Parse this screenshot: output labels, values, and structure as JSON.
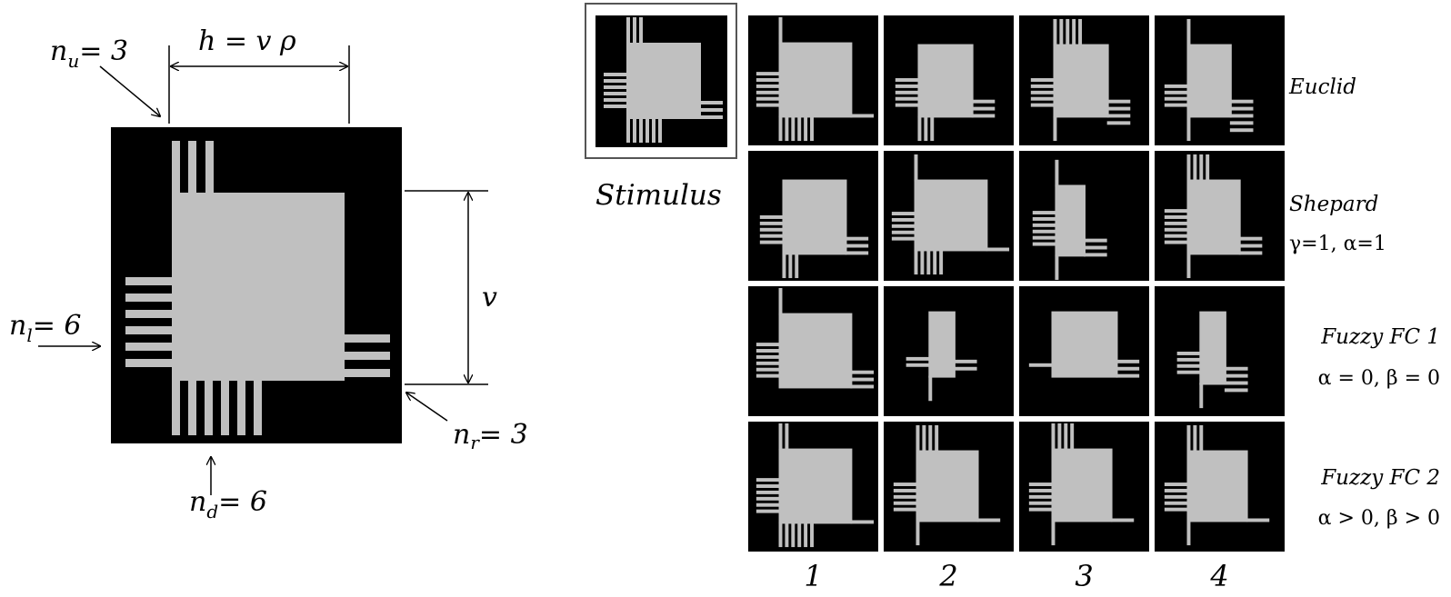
{
  "diagram": {
    "labels": {
      "nu": "n",
      "nu_sub": "u",
      "nu_val": "= 3",
      "h": "h = v ρ",
      "nl": "n",
      "nl_sub": "l",
      "nl_val": "= 6",
      "v": "v",
      "nr": "n",
      "nr_sub": "r",
      "nr_val": "= 3",
      "nd": "n",
      "nd_sub": "d",
      "nd_val": "= 6"
    },
    "stimulus_label": "Stimulus",
    "rows": [
      {
        "name": "Euclid",
        "params": ""
      },
      {
        "name": "Shepard",
        "params": "γ=1, α=1"
      },
      {
        "name": "Fuzzy FC 1",
        "params": "α = 0, β = 0"
      },
      {
        "name": "Fuzzy FC 2",
        "params": "α > 0, β > 0"
      }
    ],
    "columns": [
      "1",
      "2",
      "3",
      "4"
    ],
    "colors": {
      "background": "#000000",
      "glyph": "#c0c0c0"
    }
  }
}
